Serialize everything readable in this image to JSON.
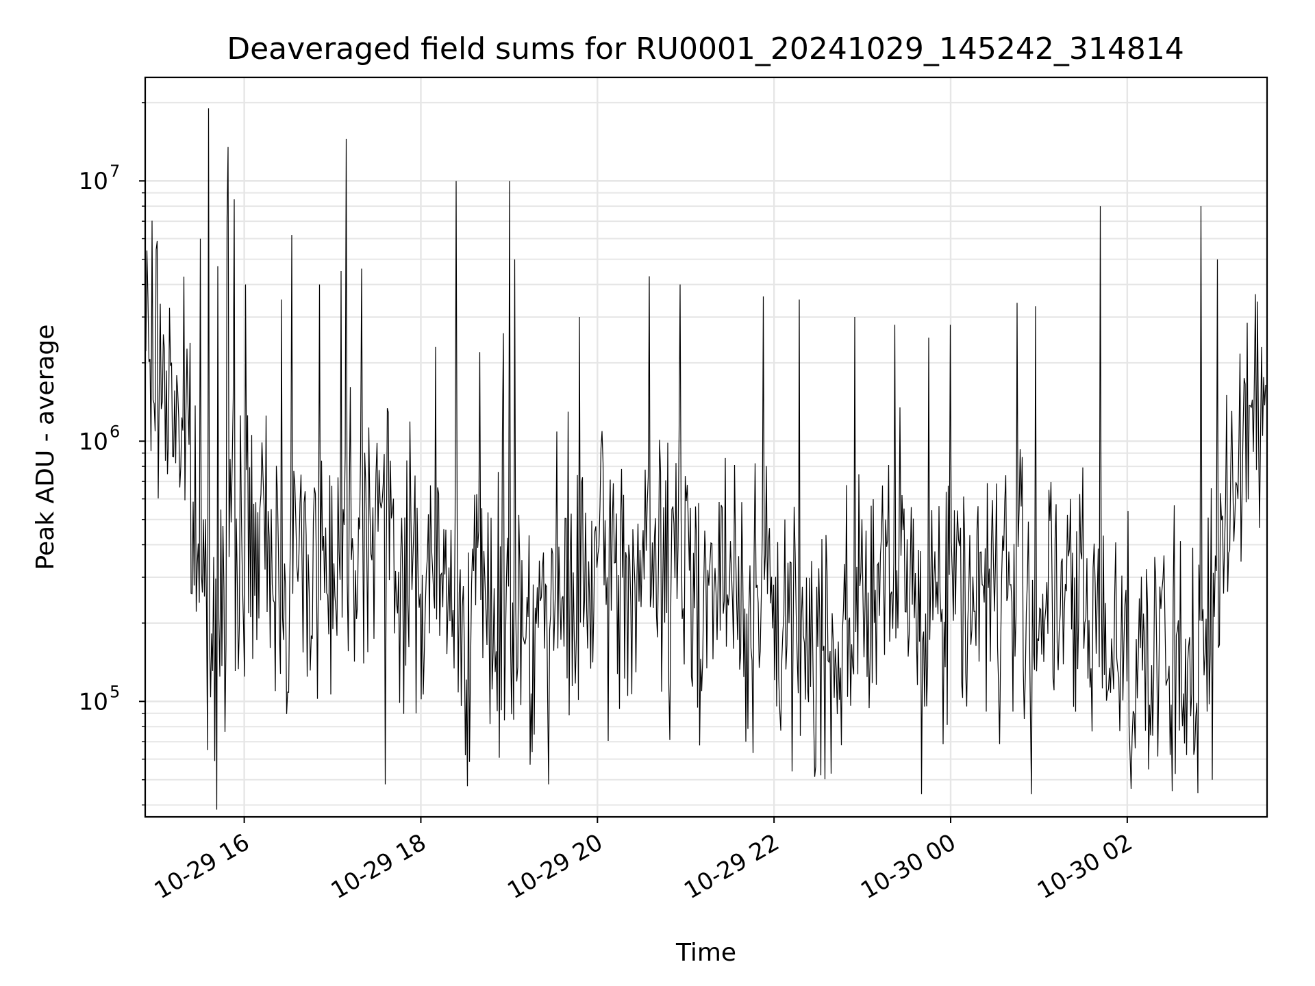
{
  "chart_data": {
    "type": "line",
    "title": "Deaveraged field sums for RU0001_20241029_145242_314814",
    "xlabel": "Time",
    "ylabel": "Peak ADU - average",
    "yscale": "log",
    "grid": true,
    "x_range": [
      "2024-10-29T14:52:42",
      "2024-10-30T03:35:00"
    ],
    "ylim": [
      36000,
      25000000
    ],
    "x_ticks": [
      {
        "value": "2024-10-29T16:00",
        "label": "10-29 16"
      },
      {
        "value": "2024-10-29T18:00",
        "label": "10-29 18"
      },
      {
        "value": "2024-10-29T20:00",
        "label": "10-29 20"
      },
      {
        "value": "2024-10-29T22:00",
        "label": "10-29 22"
      },
      {
        "value": "2024-10-30T00:00",
        "label": "10-30 00"
      },
      {
        "value": "2024-10-30T02:00",
        "label": "10-30 02"
      }
    ],
    "y_ticks": [
      {
        "value": 100000,
        "base": "10",
        "exp": "5"
      },
      {
        "value": 1000000,
        "base": "10",
        "exp": "6"
      },
      {
        "value": 10000000,
        "base": "10",
        "exp": "7"
      }
    ],
    "line_color": "#000000",
    "grid_color": "#e6e6e6",
    "series": [
      {
        "values": [
          [
            "2024-10-29T14:53",
            2500000
          ],
          [
            "2024-10-29T15:00",
            2000000
          ],
          [
            "2024-10-29T15:05",
            1800000
          ],
          [
            "2024-10-29T15:10",
            1500000
          ],
          [
            "2024-10-29T15:15",
            1200000
          ],
          [
            "2024-10-29T15:20",
            700000
          ],
          [
            "2024-10-29T15:25",
            300000
          ],
          [
            "2024-10-29T15:30",
            200000
          ],
          [
            "2024-10-29T15:36",
            7000000
          ],
          [
            "2024-10-29T15:45",
            150000
          ],
          [
            "2024-10-29T15:50",
            200000
          ],
          [
            "2024-10-29T15:55",
            400000
          ],
          [
            "2024-10-29T16:00",
            500000
          ],
          [
            "2024-10-29T16:15",
            400000
          ],
          [
            "2024-10-29T16:30",
            300000
          ],
          [
            "2024-10-29T16:45",
            500000
          ],
          [
            "2024-10-29T17:00",
            400000
          ],
          [
            "2024-10-29T17:15",
            600000
          ],
          [
            "2024-10-29T17:30",
            800000
          ],
          [
            "2024-10-29T17:45",
            400000
          ],
          [
            "2024-10-29T18:00",
            300000
          ],
          [
            "2024-10-29T18:15",
            250000
          ],
          [
            "2024-10-29T18:30",
            200000
          ],
          [
            "2024-10-29T18:45",
            250000
          ],
          [
            "2024-10-29T19:00",
            200000
          ],
          [
            "2024-10-29T19:15",
            180000
          ],
          [
            "2024-10-29T19:30",
            250000
          ],
          [
            "2024-10-29T19:45",
            300000
          ],
          [
            "2024-10-29T20:00",
            300000
          ],
          [
            "2024-10-29T20:15",
            400000
          ],
          [
            "2024-10-29T20:30",
            350000
          ],
          [
            "2024-10-29T20:45",
            300000
          ],
          [
            "2024-10-29T21:00",
            350000
          ],
          [
            "2024-10-29T21:15",
            300000
          ],
          [
            "2024-10-29T21:30",
            250000
          ],
          [
            "2024-10-29T21:45",
            200000
          ],
          [
            "2024-10-29T22:00",
            200000
          ],
          [
            "2024-10-29T22:15",
            180000
          ],
          [
            "2024-10-29T22:30",
            150000
          ],
          [
            "2024-10-29T22:45",
            180000
          ],
          [
            "2024-10-29T23:00",
            250000
          ],
          [
            "2024-10-29T23:15",
            300000
          ],
          [
            "2024-10-29T23:30",
            250000
          ],
          [
            "2024-10-29T23:45",
            200000
          ],
          [
            "2024-10-30T00:00",
            250000
          ],
          [
            "2024-10-30T00:15",
            300000
          ],
          [
            "2024-10-30T00:30",
            300000
          ],
          [
            "2024-10-30T00:45",
            250000
          ],
          [
            "2024-10-30T01:00",
            300000
          ],
          [
            "2024-10-30T01:15",
            250000
          ],
          [
            "2024-10-30T01:30",
            200000
          ],
          [
            "2024-10-30T01:45",
            180000
          ],
          [
            "2024-10-30T02:00",
            150000
          ],
          [
            "2024-10-30T02:15",
            130000
          ],
          [
            "2024-10-30T02:30",
            120000
          ],
          [
            "2024-10-30T02:45",
            130000
          ],
          [
            "2024-10-30T03:00",
            200000
          ],
          [
            "2024-10-30T03:10",
            800000
          ],
          [
            "2024-10-30T03:20",
            1500000
          ],
          [
            "2024-10-30T03:30",
            1400000
          ]
        ]
      }
    ],
    "noise_band": {
      "baseline": [
        [
          "2024-10-29T14:53",
          2400000
        ],
        [
          "2024-10-29T15:10",
          1600000
        ],
        [
          "2024-10-29T15:20",
          1100000
        ],
        [
          "2024-10-29T15:28",
          350000
        ],
        [
          "2024-10-29T15:40",
          200000
        ],
        [
          "2024-10-29T16:00",
          420000
        ],
        [
          "2024-10-29T16:30",
          320000
        ],
        [
          "2024-10-29T17:00",
          380000
        ],
        [
          "2024-10-29T17:30",
          650000
        ],
        [
          "2024-10-29T17:40",
          350000
        ],
        [
          "2024-10-29T18:30",
          220000
        ],
        [
          "2024-10-29T19:30",
          220000
        ],
        [
          "2024-10-29T20:00",
          300000
        ],
        [
          "2024-10-29T21:00",
          330000
        ],
        [
          "2024-10-29T22:00",
          200000
        ],
        [
          "2024-10-29T22:45",
          170000
        ],
        [
          "2024-10-29T23:00",
          260000
        ],
        [
          "2024-10-30T00:30",
          280000
        ],
        [
          "2024-10-30T01:30",
          220000
        ],
        [
          "2024-10-30T02:30",
          125000
        ],
        [
          "2024-10-30T02:55",
          140000
        ],
        [
          "2024-10-30T03:10",
          700000
        ],
        [
          "2024-10-30T03:20",
          1400000
        ],
        [
          "2024-10-30T03:35",
          1400000
        ]
      ],
      "spread_decades": 0.42
    },
    "spikes": [
      [
        "2024-10-29T15:30",
        6000000
      ],
      [
        "2024-10-29T15:36",
        19000000
      ],
      [
        "2024-10-29T15:42",
        4700000
      ],
      [
        "2024-10-29T15:48",
        7200000
      ],
      [
        "2024-10-29T15:49",
        13500000
      ],
      [
        "2024-10-29T15:53",
        8500000
      ],
      [
        "2024-10-29T16:01",
        4000000
      ],
      [
        "2024-10-29T16:25",
        3500000
      ],
      [
        "2024-10-29T16:32",
        6200000
      ],
      [
        "2024-10-29T16:51",
        4000000
      ],
      [
        "2024-10-29T17:06",
        4500000
      ],
      [
        "2024-10-29T17:09",
        14500000
      ],
      [
        "2024-10-29T17:20",
        4600000
      ],
      [
        "2024-10-29T18:10",
        2300000
      ],
      [
        "2024-10-29T18:24",
        10000000
      ],
      [
        "2024-10-29T18:40",
        2200000
      ],
      [
        "2024-10-29T18:56",
        2600000
      ],
      [
        "2024-10-29T19:00",
        10000000
      ],
      [
        "2024-10-29T19:04",
        5000000
      ],
      [
        "2024-10-29T19:48",
        3000000
      ],
      [
        "2024-10-29T20:35",
        4300000
      ],
      [
        "2024-10-29T20:56",
        4000000
      ],
      [
        "2024-10-29T21:53",
        3600000
      ],
      [
        "2024-10-29T22:17",
        3500000
      ],
      [
        "2024-10-29T22:55",
        3000000
      ],
      [
        "2024-10-29T23:22",
        2800000
      ],
      [
        "2024-10-29T23:45",
        2500000
      ],
      [
        "2024-10-30T00:00",
        2800000
      ],
      [
        "2024-10-30T00:45",
        3400000
      ],
      [
        "2024-10-30T00:58",
        3300000
      ],
      [
        "2024-10-30T01:42",
        8000000
      ],
      [
        "2024-10-30T02:50",
        8000000
      ],
      [
        "2024-10-30T03:01",
        5000000
      ]
    ],
    "dips": [
      [
        "2024-10-29T17:36",
        48000
      ],
      [
        "2024-10-29T19:27",
        48000
      ],
      [
        "2024-10-29T22:32",
        52000
      ],
      [
        "2024-10-29T23:40",
        44000
      ],
      [
        "2024-10-30T00:55",
        44000
      ],
      [
        "2024-10-30T02:58",
        50000
      ]
    ]
  }
}
